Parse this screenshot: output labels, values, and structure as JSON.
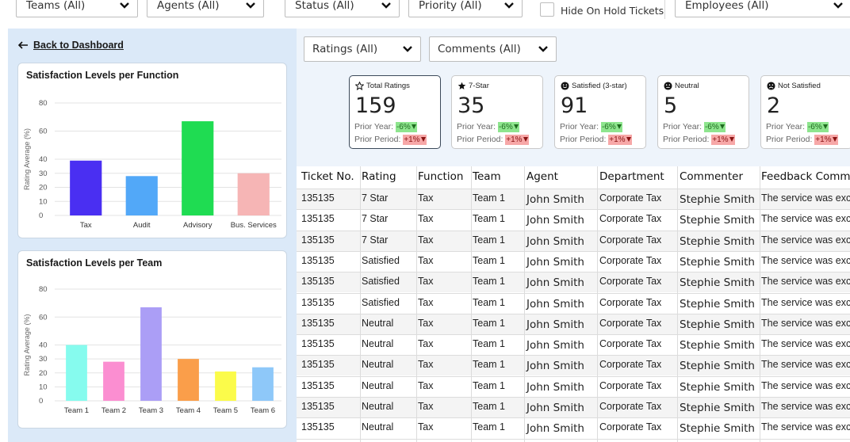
{
  "filters": {
    "teams": "Teams (All)",
    "agents": "Agents (All)",
    "status": "Status (All)",
    "priority": "Priority (All)",
    "hide_on_hold": "Hide On Hold Tickets",
    "employees": "Employees (All)",
    "ratings": "Ratings (All)",
    "comments": "Comments (All)"
  },
  "back_link": "Back to Dashboard",
  "chart_data": [
    {
      "type": "bar",
      "title": "Satisfaction Levels per Function",
      "ylabel": "Rating Average (%)",
      "ylim": [
        0,
        80
      ],
      "yticks": [
        0,
        10,
        20,
        30,
        40,
        60,
        80
      ],
      "categories": [
        "Tax",
        "Audit",
        "Advisory",
        "Bus. Services"
      ],
      "values": [
        39,
        28,
        67,
        30
      ],
      "colors": [
        "#4a2ff2",
        "#52a8f8",
        "#1fdc52",
        "#f6b5b5"
      ]
    },
    {
      "type": "bar",
      "title": "Satisfaction Levels per Team",
      "ylabel": "Rating Average (%)",
      "ylim": [
        0,
        80
      ],
      "yticks": [
        0,
        10,
        20,
        30,
        40,
        60,
        80
      ],
      "categories": [
        "Team 1",
        "Team 2",
        "Team 3",
        "Team 4",
        "Team 5",
        "Team 6"
      ],
      "values": [
        40,
        28,
        67,
        30,
        21,
        24
      ],
      "colors": [
        "#86fbee",
        "#fb8ed1",
        "#ab9ef6",
        "#fa9e4a",
        "#fbfb4a",
        "#8ec8f9"
      ]
    }
  ],
  "kpis": [
    {
      "icon": "star-outline-icon",
      "label": "Total Ratings",
      "value": "159",
      "prior_year_label": "Prior Year:",
      "prior_year": "-6%",
      "prior_period_label": "Prior Period:",
      "prior_period": "+1%"
    },
    {
      "icon": "star-filled-icon",
      "label": "7-Star",
      "value": "35",
      "prior_year_label": "Prior Year:",
      "prior_year": "-6%",
      "prior_period_label": "Prior Period:",
      "prior_period": "+1%"
    },
    {
      "icon": "smile-icon",
      "label": "Satisfied (3-star)",
      "value": "91",
      "prior_year_label": "Prior Year:",
      "prior_year": "-6%",
      "prior_period_label": "Prior Period:",
      "prior_period": "+1%"
    },
    {
      "icon": "neutral-face-icon",
      "label": "Neutral",
      "value": "5",
      "prior_year_label": "Prior Year:",
      "prior_year": "-6%",
      "prior_period_label": "Prior Period:",
      "prior_period": "+1%"
    },
    {
      "icon": "sad-face-icon",
      "label": "Not Satisfied",
      "value": "2",
      "prior_year_label": "Prior Year:",
      "prior_year": "-6%",
      "prior_period_label": "Prior Period:",
      "prior_period": "+1%"
    }
  ],
  "table": {
    "headers": [
      "Ticket No.",
      "Rating",
      "Function",
      "Team",
      "Agent",
      "Department",
      "Commenter",
      "Feedback Comm"
    ],
    "rows": [
      [
        "135135",
        "7 Star",
        "Tax",
        "Team 1",
        "John Smith",
        "Corporate Tax",
        "Stephie Smith",
        "The service was exc"
      ],
      [
        "135135",
        "7 Star",
        "Tax",
        "Team 1",
        "John Smith",
        "Corporate Tax",
        "Stephie Smith",
        "The service was exc"
      ],
      [
        "135135",
        "7 Star",
        "Tax",
        "Team 1",
        "John Smith",
        "Corporate Tax",
        "Stephie Smith",
        "The service was exc"
      ],
      [
        "135135",
        "Satisfied",
        "Tax",
        "Team 1",
        "John Smith",
        "Corporate Tax",
        "Stephie Smith",
        "The service was exc"
      ],
      [
        "135135",
        "Satisfied",
        "Tax",
        "Team 1",
        "John Smith",
        "Corporate Tax",
        "Stephie Smith",
        "The service was exc"
      ],
      [
        "135135",
        "Satisfied",
        "Tax",
        "Team 1",
        "John Smith",
        "Corporate Tax",
        "Stephie Smith",
        "The service was exc"
      ],
      [
        "135135",
        "Neutral",
        "Tax",
        "Team 1",
        "John Smith",
        "Corporate Tax",
        "Stephie Smith",
        "The service was exc"
      ],
      [
        "135135",
        "Neutral",
        "Tax",
        "Team 1",
        "John Smith",
        "Corporate Tax",
        "Stephie Smith",
        "The service was exc"
      ],
      [
        "135135",
        "Neutral",
        "Tax",
        "Team 1",
        "John Smith",
        "Corporate Tax",
        "Stephie Smith",
        "The service was exc"
      ],
      [
        "135135",
        "Neutral",
        "Tax",
        "Team 1",
        "John Smith",
        "Corporate Tax",
        "Stephie Smith",
        "The service was exc"
      ],
      [
        "135135",
        "Neutral",
        "Tax",
        "Team 1",
        "John Smith",
        "Corporate Tax",
        "Stephie Smith",
        "The service was exc"
      ],
      [
        "135135",
        "Neutral",
        "Tax",
        "Team 1",
        "John Smith",
        "Corporate Tax",
        "Stephie Smith",
        "The service was exc"
      ]
    ]
  }
}
